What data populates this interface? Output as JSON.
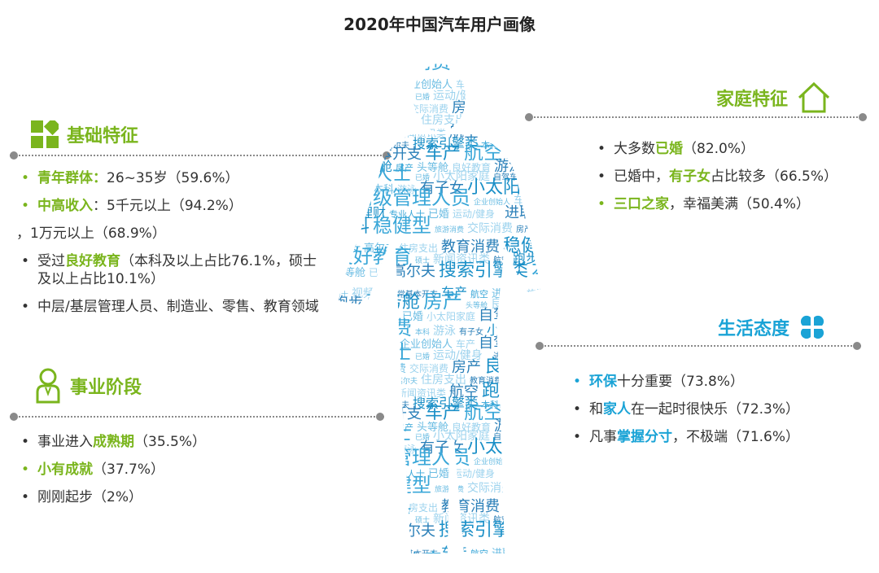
{
  "title": "2020年中国汽车用户画像",
  "colors": {
    "green": "#7ab51d",
    "blue": "#1aa3d6",
    "text": "#333333",
    "divider": "#8a8a8a"
  },
  "basic": {
    "title": "基础特征",
    "icon": "grid-blocks-icon",
    "items": [
      {
        "bullet": "•",
        "highlight": "青年群体：",
        "rest": "26~35岁（59.6%）",
        "highlight_color": "green",
        "bullet_color": "green"
      },
      {
        "bullet": "•",
        "highlight": "中高收入",
        "rest": "：5千元以上（94.2%）",
        "highlight_color": "green",
        "bullet_color": "green"
      },
      {
        "bullet": "",
        "highlight": "",
        "rest": "，1万元以上（68.9%）"
      },
      {
        "bullet": "•",
        "pre": "受过",
        "highlight": "良好教育",
        "rest": "（本科及以上占比76.1%，硕士及以上占比10.1%）",
        "highlight_color": "green"
      },
      {
        "bullet": "•",
        "highlight": "",
        "rest": "中层/基层管理人员、制造业、零售、教育领域"
      }
    ]
  },
  "career": {
    "title": "事业阶段",
    "icon": "person-icon",
    "items": [
      {
        "bullet": "•",
        "pre": "事业进入",
        "highlight": "成熟期",
        "rest": "（35.5%）",
        "highlight_color": "green"
      },
      {
        "bullet": "•",
        "highlight": "小有成就",
        "rest": "（37.7%）",
        "highlight_color": "green",
        "bullet_color": "green"
      },
      {
        "bullet": "•",
        "highlight": "",
        "rest": "刚刚起步（2%）"
      }
    ]
  },
  "family": {
    "title": "家庭特征",
    "icon": "house-icon",
    "items": [
      {
        "bullet": "•",
        "pre": "大多数",
        "highlight": "已婚",
        "rest": "（82.0%）",
        "highlight_color": "green"
      },
      {
        "bullet": "•",
        "pre": "已婚中，",
        "highlight": "有子女",
        "rest": "占比较多（66.5%）",
        "highlight_color": "green"
      },
      {
        "bullet": "•",
        "highlight": "三口之家",
        "rest": "，幸福美满（50.4%）",
        "highlight_color": "green",
        "bullet_color": "green"
      }
    ]
  },
  "life": {
    "title": "生活态度",
    "icon": "clover-icon",
    "items": [
      {
        "bullet": "•",
        "highlight": "环保",
        "rest": "十分重要（73.8%）",
        "highlight_color": "blue",
        "bullet_color": "blue"
      },
      {
        "bullet": "•",
        "pre": "和",
        "highlight": "家人",
        "rest": "在一起时很快乐（72.3%）",
        "highlight_color": "blue"
      },
      {
        "bullet": "•",
        "pre": "凡事",
        "highlight": "掌握分寸",
        "rest": "，不极端（71.6%）",
        "highlight_color": "blue"
      }
    ]
  },
  "wordcloud": {
    "icon": "person-wordcloud-icon",
    "words": [
      "旅游",
      "交际消费",
      "本科",
      "游泳",
      "有子女",
      "小太阳家庭",
      "中高级管理人员",
      "企业创始人",
      "车产",
      "自驾车",
      "投资理财",
      "专业人士",
      "已婚",
      "运动/健身",
      "进取型",
      "本科",
      "稳健型",
      "旅游消费",
      "交际消费",
      "房产",
      "良好教育",
      "有子女",
      "高尔夫",
      "住房支出",
      "教育消费",
      "稳健型",
      "良好教育",
      "硕士",
      "新闻资讯类",
      "航空",
      "跑步",
      "博士",
      "头等舱",
      "已婚",
      "高尔夫",
      "搜索引擎类",
      "本科",
      "硕士",
      "视频类",
      "日常基本开支",
      "车产",
      "航空",
      "进取型",
      "旅游消费",
      "跑步",
      "商务舱",
      "房产",
      "头等舱",
      "良好教育",
      "游泳",
      "博士",
      "专业人士",
      "已婚",
      "小太阳家庭",
      "自驾车"
    ]
  }
}
